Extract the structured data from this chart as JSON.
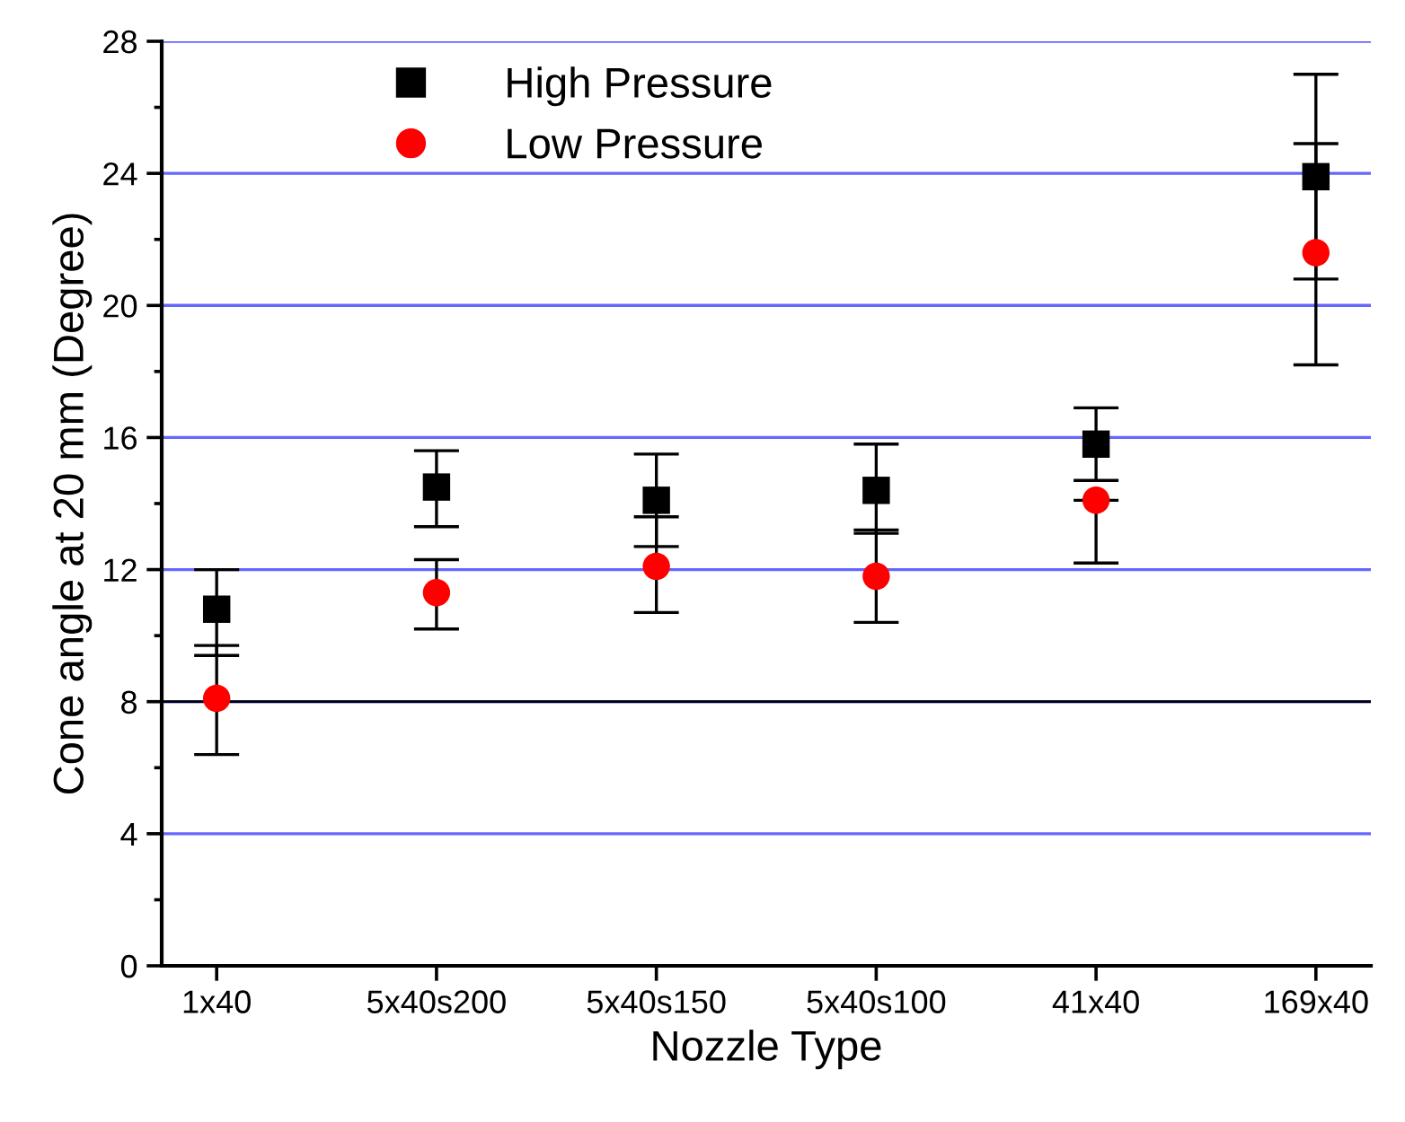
{
  "chart_data": {
    "type": "scatter",
    "xlabel": "Nozzle Type",
    "ylabel": "Cone angle at 20 mm (Degree)",
    "categories": [
      "1x40",
      "5x40s200",
      "5x40s150",
      "5x40s100",
      "41x40",
      "169x40"
    ],
    "series": [
      {
        "name": "High Pressure",
        "color": "#000000",
        "marker": "square",
        "values": [
          10.8,
          14.5,
          14.1,
          14.4,
          15.8,
          23.9
        ],
        "errors": [
          [
            9.4,
            12.0
          ],
          [
            13.3,
            15.6
          ],
          [
            12.7,
            15.5
          ],
          [
            13.1,
            15.8
          ],
          [
            14.7,
            16.9
          ],
          [
            20.8,
            27.0
          ]
        ]
      },
      {
        "name": "Low Pressure",
        "color": "#ff0000",
        "marker": "circle",
        "values": [
          8.1,
          11.3,
          12.1,
          11.8,
          14.1,
          21.6
        ],
        "errors": [
          [
            6.4,
            9.7
          ],
          [
            10.2,
            12.3
          ],
          [
            10.7,
            13.6
          ],
          [
            10.4,
            13.2
          ],
          [
            12.2,
            14.1
          ],
          [
            18.2,
            24.9
          ]
        ]
      }
    ],
    "ylim": [
      0,
      28
    ],
    "yticks": [
      0,
      4,
      8,
      12,
      16,
      20,
      24,
      28
    ],
    "grid": "y",
    "ref_lines": [
      {
        "axis": "y",
        "value": 8,
        "color": "#000000"
      }
    ],
    "legend": "top left"
  }
}
